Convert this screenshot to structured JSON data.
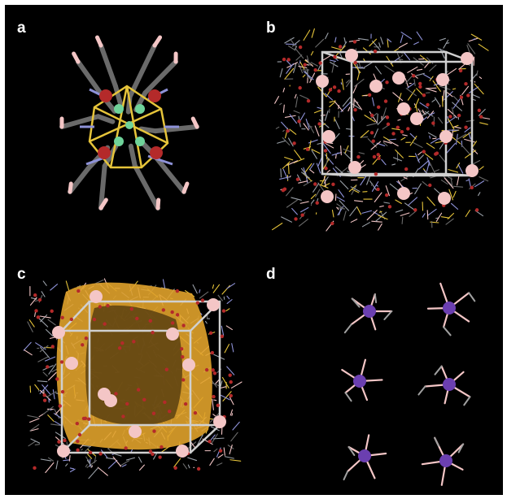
{
  "panels": [
    {
      "label": "a"
    },
    {
      "label": "b"
    },
    {
      "label": "c"
    },
    {
      "label": "d"
    }
  ],
  "colors": {
    "background": "#000000",
    "carbon": "#6a6a6a",
    "nitrogen": "#8e92d8",
    "oxygen": "#b42a2a",
    "metal_large": "#f4c6c6",
    "metal_small": "#6fd39a",
    "sulfur_bond": "#e6c43a",
    "void_surface": "#e0a22b",
    "cation": "#6b3fb0",
    "cell_edge": "#d0d0d0"
  },
  "icons": {
    "cluster": "molecular-cluster-icon",
    "unit_cell": "unit-cell-box-icon",
    "void": "void-surface-icon",
    "cation": "counter-cation-icon"
  }
}
